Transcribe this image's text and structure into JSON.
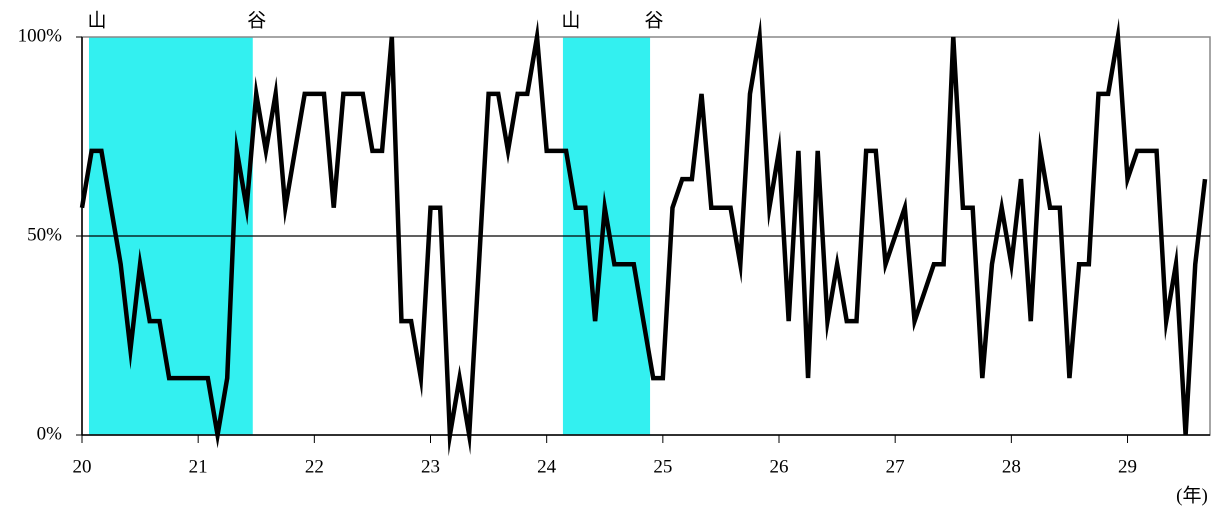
{
  "chart_data": {
    "type": "line",
    "x_label": "(年)",
    "color": "#000000",
    "shade_color": "#33f0f0",
    "x": [
      20,
      20.083,
      20.167,
      20.25,
      20.333,
      20.417,
      20.5,
      20.583,
      20.667,
      20.75,
      20.833,
      20.917,
      21,
      21.083,
      21.167,
      21.25,
      21.333,
      21.417,
      21.5,
      21.583,
      21.667,
      21.75,
      21.833,
      21.917,
      22,
      22.083,
      22.167,
      22.25,
      22.333,
      22.417,
      22.5,
      22.583,
      22.667,
      22.75,
      22.833,
      22.917,
      23,
      23.083,
      23.167,
      23.25,
      23.333,
      23.417,
      23.5,
      23.583,
      23.667,
      23.75,
      23.833,
      23.917,
      24,
      24.083,
      24.167,
      24.25,
      24.333,
      24.417,
      24.5,
      24.583,
      24.667,
      24.75,
      24.833,
      24.917,
      25,
      25.083,
      25.167,
      25.25,
      25.333,
      25.417,
      25.5,
      25.583,
      25.667,
      25.75,
      25.833,
      25.917,
      26,
      26.083,
      26.167,
      26.25,
      26.333,
      26.417,
      26.5,
      26.583,
      26.667,
      26.75,
      26.833,
      26.917,
      27,
      27.083,
      27.167,
      27.25,
      27.333,
      27.417,
      27.5,
      27.583,
      27.667,
      27.75,
      27.833,
      27.917,
      28,
      28.083,
      28.167,
      28.25,
      28.333,
      28.417,
      28.5,
      28.583,
      28.667,
      28.75,
      28.833,
      28.917,
      29,
      29.083,
      29.167,
      29.25,
      29.333,
      29.417,
      29.5,
      29.583,
      29.667
    ],
    "values": [
      57.1,
      71.4,
      71.4,
      57.1,
      42.9,
      21.4,
      42.9,
      28.6,
      28.6,
      14.3,
      14.3,
      14.3,
      14.3,
      14.3,
      0,
      14.3,
      71.4,
      57.1,
      85.7,
      71.4,
      85.7,
      57.1,
      71.4,
      85.7,
      85.7,
      85.7,
      57.1,
      85.7,
      85.7,
      85.7,
      71.4,
      71.4,
      100,
      28.6,
      28.6,
      14.3,
      57.1,
      57.1,
      0,
      14.3,
      0,
      42.9,
      85.7,
      85.7,
      71.4,
      85.7,
      85.7,
      100,
      71.4,
      71.4,
      71.4,
      57.1,
      57.1,
      28.6,
      57.1,
      42.9,
      42.9,
      42.9,
      28.6,
      14.3,
      14.3,
      57.1,
      64.3,
      64.3,
      85.7,
      57.1,
      57.1,
      57.1,
      42.9,
      85.7,
      100,
      57.1,
      71.4,
      28.6,
      71.4,
      14.3,
      71.4,
      28.6,
      42.9,
      28.6,
      28.6,
      71.4,
      71.4,
      42.9,
      50,
      57.1,
      28.6,
      35.7,
      42.9,
      42.9,
      100,
      57.1,
      57.1,
      14.3,
      42.9,
      57.1,
      42.9,
      64.3,
      28.6,
      71.4,
      57.1,
      57.1,
      14.3,
      42.9,
      42.9,
      85.7,
      85.7,
      100,
      64.3,
      71.4,
      71.4,
      71.4,
      28.6,
      42.9,
      0,
      42.9,
      64.3
    ],
    "xlim": [
      20,
      29.71
    ],
    "xticks": [
      20,
      21,
      22,
      23,
      24,
      25,
      26,
      27,
      28,
      29
    ],
    "ylim": [
      0,
      100
    ],
    "yticks": [
      {
        "value": 0,
        "label": "0%"
      },
      {
        "value": 50,
        "label": "50%"
      },
      {
        "value": 100,
        "label": "100%"
      }
    ],
    "shaded_regions": [
      {
        "start": 20.06,
        "end": 21.47,
        "start_label": "山",
        "end_label": "谷"
      },
      {
        "start": 24.14,
        "end": 24.89,
        "start_label": "山",
        "end_label": "谷"
      }
    ]
  }
}
